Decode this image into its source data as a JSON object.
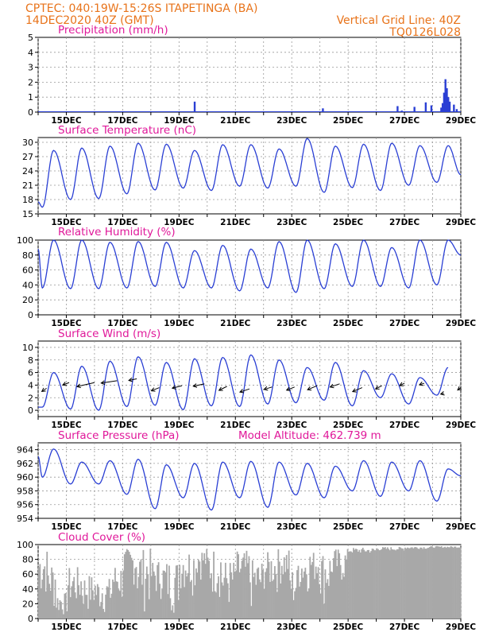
{
  "header": {
    "line1_left": "CPTEC:   040:19W-15:26S   ITAPETINGA (BA)",
    "line2_left": "14DEC2020 40Z (GMT)",
    "line2_right": "Vertical Grid Line: 40Z",
    "line3_right": "TQ0126L028"
  },
  "colors": {
    "header": "#e8731a",
    "title": "#e0189a",
    "line": "#2a3fd4",
    "cloud": "#a8a8a8",
    "wind_arrow": "#000000"
  },
  "chart_data": [
    {
      "id": "precip",
      "type": "bar",
      "title": "Precipitation (mm/h)",
      "ylim": [
        0,
        5
      ],
      "yticks": [
        0,
        1,
        2,
        3,
        4,
        5
      ],
      "xlabels": [
        "15DEC",
        "17DEC",
        "19DEC",
        "21DEC",
        "23DEC",
        "25DEC",
        "27DEC",
        "29DEC"
      ],
      "xrange_days": [
        14.0,
        29.0
      ],
      "bars": [
        [
          19.55,
          0.7
        ],
        [
          24.1,
          0.25
        ],
        [
          26.75,
          0.4
        ],
        [
          26.9,
          0.1
        ],
        [
          27.35,
          0.35
        ],
        [
          27.75,
          0.65
        ],
        [
          27.95,
          0.45
        ],
        [
          28.3,
          0.3
        ],
        [
          28.35,
          0.6
        ],
        [
          28.4,
          1.3
        ],
        [
          28.45,
          2.2
        ],
        [
          28.5,
          1.6
        ],
        [
          28.55,
          1.0
        ],
        [
          28.6,
          0.7
        ],
        [
          28.75,
          0.5
        ],
        [
          28.85,
          0.2
        ]
      ]
    },
    {
      "id": "temp",
      "type": "line",
      "title": "Surface Temperature (nC)",
      "ylim": [
        15,
        31
      ],
      "yticks": [
        15,
        18,
        21,
        24,
        27,
        30
      ],
      "xlabels": [
        "15DEC",
        "17DEC",
        "19DEC",
        "21DEC",
        "23DEC",
        "25DEC",
        "27DEC",
        "29DEC"
      ],
      "xrange_days": [
        14.0,
        29.0
      ],
      "daily_max": [
        28.3,
        28.8,
        29.2,
        29.8,
        29.6,
        28.3,
        29.5,
        29.5,
        28.6,
        30.8,
        29.2,
        29.6,
        29.8,
        29.3,
        29.3
      ],
      "daily_min": [
        16.4,
        18.0,
        18.2,
        19.2,
        20.0,
        20.4,
        19.9,
        20.8,
        20.4,
        20.8,
        19.5,
        20.5,
        19.9,
        21.0,
        21.6
      ],
      "start_value": 17.5,
      "end_value": 23.2
    },
    {
      "id": "rh",
      "type": "line",
      "title": "Relative Humidity (%)",
      "ylim": [
        0,
        100
      ],
      "yticks": [
        0,
        20,
        40,
        60,
        80,
        100
      ],
      "xlabels": [
        "15DEC",
        "17DEC",
        "19DEC",
        "21DEC",
        "23DEC",
        "25DEC",
        "27DEC",
        "29DEC"
      ],
      "xrange_days": [
        14.0,
        29.0
      ],
      "daily_max": [
        100,
        100,
        97,
        98,
        97,
        86,
        93,
        88,
        98,
        100,
        95,
        100,
        90,
        100,
        100
      ],
      "daily_min": [
        36,
        35,
        35,
        36,
        38,
        36,
        36,
        32,
        36,
        30,
        35,
        38,
        38,
        36,
        40
      ],
      "start_value": 88,
      "end_value": 80
    },
    {
      "id": "wind",
      "type": "line",
      "title": "Surface Wind (m/s)",
      "ylim": [
        -1,
        11
      ],
      "yticks": [
        0,
        2,
        4,
        6,
        8,
        10
      ],
      "xlabels": [
        "15DEC",
        "17DEC",
        "19DEC",
        "21DEC",
        "23DEC",
        "25DEC",
        "27DEC",
        "29DEC"
      ],
      "xrange_days": [
        14.0,
        29.0
      ],
      "daily_max": [
        6.0,
        7.0,
        7.8,
        8.5,
        7.6,
        8.2,
        8.4,
        8.8,
        8.0,
        6.8,
        7.6,
        6.3,
        5.8,
        5.2,
        6.8
      ],
      "daily_min": [
        0.5,
        0.2,
        0.0,
        0.6,
        0.8,
        0.1,
        0.7,
        0.6,
        1.0,
        1.2,
        1.6,
        0.7,
        2.0,
        1.0,
        2.4
      ],
      "arrows": [
        [
          14.3,
          3.5,
          -6,
          4
        ],
        [
          15.1,
          4.4,
          -8,
          3
        ],
        [
          16.0,
          4.4,
          -22,
          5
        ],
        [
          16.8,
          4.7,
          -20,
          3
        ],
        [
          17.5,
          5.0,
          -10,
          2
        ],
        [
          18.3,
          3.6,
          -10,
          4
        ],
        [
          19.1,
          3.9,
          -12,
          3
        ],
        [
          19.9,
          4.2,
          -14,
          3
        ],
        [
          20.7,
          3.8,
          -10,
          5
        ],
        [
          21.5,
          3.4,
          -12,
          4
        ],
        [
          22.3,
          3.7,
          -10,
          3
        ],
        [
          23.1,
          3.7,
          -10,
          4
        ],
        [
          23.9,
          3.9,
          -12,
          5
        ],
        [
          24.7,
          4.2,
          -12,
          4
        ],
        [
          25.5,
          3.6,
          -12,
          5
        ],
        [
          26.2,
          3.9,
          -8,
          4
        ],
        [
          27.0,
          4.3,
          -6,
          3
        ],
        [
          27.7,
          4.3,
          -6,
          2
        ],
        [
          28.4,
          2.7,
          -4,
          1
        ],
        [
          29.0,
          3.6,
          -4,
          3
        ]
      ]
    },
    {
      "id": "pres",
      "type": "line",
      "title": "Surface Pressure (hPa)",
      "annotation": "Model Altitude: 462.739 m",
      "ylim": [
        954,
        965
      ],
      "yticks": [
        954,
        956,
        958,
        960,
        962,
        964
      ],
      "xlabels": [
        "15DEC",
        "17DEC",
        "19DEC",
        "21DEC",
        "23DEC",
        "25DEC",
        "27DEC",
        "29DEC"
      ],
      "xrange_days": [
        14.0,
        29.0
      ],
      "daily_max": [
        964.1,
        962.2,
        962.4,
        962.6,
        961.8,
        962.0,
        962.2,
        962.3,
        962.2,
        962.0,
        961.6,
        962.4,
        962.2,
        962.4,
        961.2
      ],
      "daily_min": [
        960.0,
        959.0,
        959.0,
        957.5,
        955.4,
        957.0,
        955.2,
        957.0,
        955.6,
        957.4,
        957.0,
        958.0,
        957.2,
        958.0,
        956.5
      ],
      "start_value": 963.0,
      "end_value": 960.2
    },
    {
      "id": "cloud",
      "type": "area",
      "title": "Cloud Cover (%)",
      "ylim": [
        0,
        100
      ],
      "yticks": [
        0,
        20,
        40,
        60,
        80,
        100
      ],
      "xlabels": [
        "15DEC",
        "17DEC",
        "19DEC",
        "21DEC",
        "23DEC",
        "25DEC",
        "27DEC",
        "29DEC"
      ],
      "xrange_days": [
        14.0,
        29.0
      ],
      "segments": [
        [
          14.0,
          96,
          20
        ],
        [
          14.3,
          80,
          0
        ],
        [
          14.6,
          35,
          0
        ],
        [
          15.0,
          70,
          5
        ],
        [
          15.5,
          60,
          0
        ],
        [
          16.0,
          55,
          0
        ],
        [
          16.6,
          75,
          10
        ],
        [
          17.0,
          95,
          40
        ],
        [
          17.5,
          95,
          5
        ],
        [
          18.0,
          80,
          20
        ],
        [
          18.4,
          80,
          0
        ],
        [
          19.0,
          95,
          30
        ],
        [
          19.6,
          96,
          50
        ],
        [
          20.0,
          96,
          20
        ],
        [
          20.5,
          80,
          0
        ],
        [
          21.0,
          92,
          20
        ],
        [
          21.5,
          80,
          0
        ],
        [
          22.0,
          90,
          30
        ],
        [
          22.5,
          95,
          40
        ],
        [
          22.9,
          70,
          0
        ],
        [
          23.2,
          88,
          30
        ],
        [
          23.6,
          92,
          40
        ],
        [
          24.0,
          92,
          10
        ],
        [
          24.4,
          95,
          40
        ],
        [
          25.0,
          96,
          70
        ],
        [
          26.0,
          97,
          80
        ],
        [
          27.0,
          98,
          85
        ],
        [
          28.0,
          98,
          90
        ],
        [
          29.0,
          98,
          90
        ]
      ]
    }
  ]
}
